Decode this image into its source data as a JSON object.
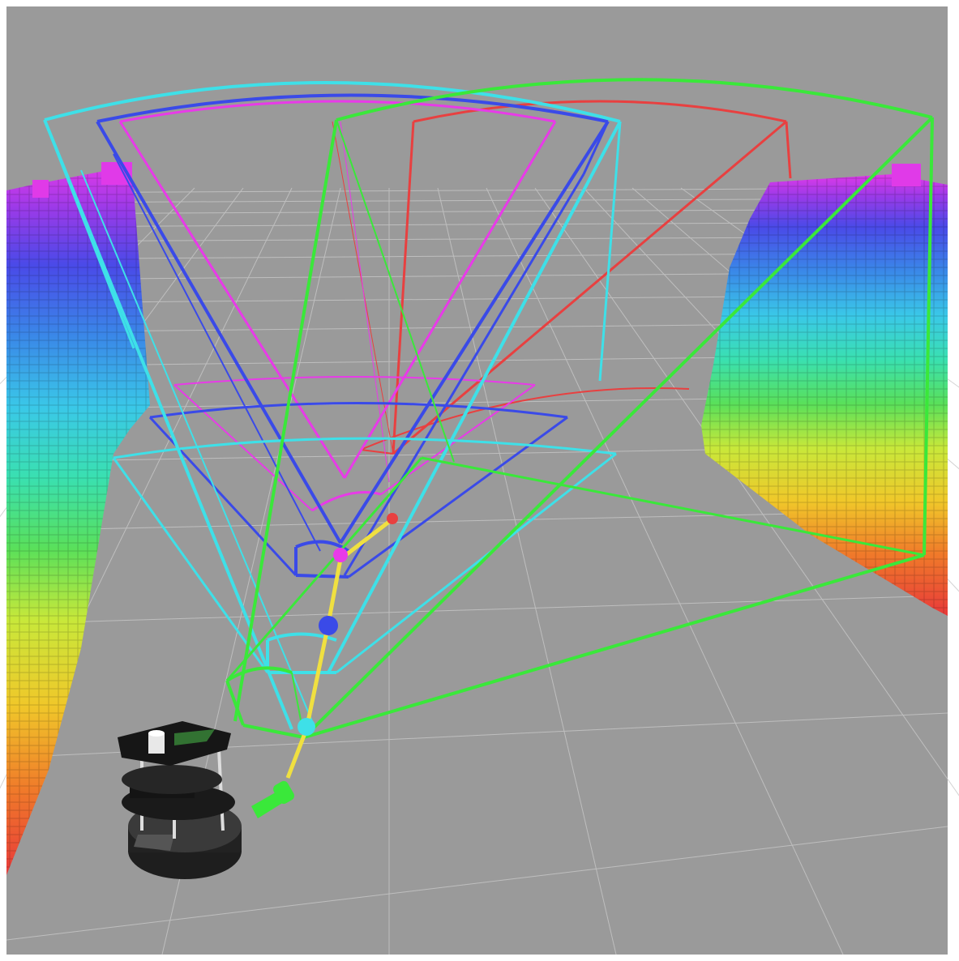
{
  "scene": {
    "background_color": "#ffffff",
    "floor_color": "#9a9a9a",
    "grid_color": "#c8c8c8",
    "voxel_color_ramp": [
      "#e83a3a",
      "#f07a2a",
      "#f0c82a",
      "#c8e83a",
      "#5ae05a",
      "#3ae0b0",
      "#3ac8e8",
      "#3a88e8",
      "#4a4ae8",
      "#9a3ae8",
      "#e03ae8"
    ],
    "frustum_colors": {
      "cyan": "#3ee0e8",
      "blue": "#3a4ae8",
      "magenta": "#e83ae8",
      "red": "#e84040",
      "green": "#3ae83a"
    },
    "trajectory_color": "#f0e040",
    "robot_icon": "turtlebot-robot-icon",
    "pose_arrow_color": "#3ae83a"
  }
}
